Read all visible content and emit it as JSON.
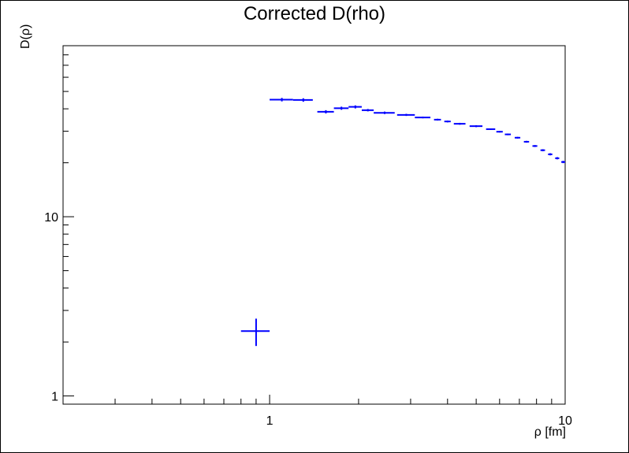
{
  "chart_data": {
    "type": "scatter",
    "title": "Corrected D(rho)",
    "xlabel": "ρ [fm]",
    "ylabel": "D(ρ)",
    "x_scale": "log",
    "y_scale": "log",
    "xlim": [
      0.2,
      10
    ],
    "ylim": [
      0.9,
      90
    ],
    "grid": false,
    "x_tick_labels": [
      "1",
      "10"
    ],
    "y_tick_labels": [
      "1",
      "10"
    ],
    "series_color": "#0000ff",
    "points": [
      {
        "x": 0.9,
        "y": 2.3,
        "xerr": 0.1,
        "yerr": 0.4
      },
      {
        "x": 1.1,
        "y": 45,
        "xerr": 0.1,
        "yerr": 1.0
      },
      {
        "x": 1.3,
        "y": 44.8,
        "xerr": 0.1,
        "yerr": 1.0
      },
      {
        "x": 1.55,
        "y": 38.5,
        "xerr": 0.1,
        "yerr": 0.8
      },
      {
        "x": 1.75,
        "y": 40.3,
        "xerr": 0.1,
        "yerr": 0.8
      },
      {
        "x": 1.95,
        "y": 41.0,
        "xerr": 0.1,
        "yerr": 0.8
      },
      {
        "x": 2.15,
        "y": 39.3,
        "xerr": 0.1,
        "yerr": 0.6
      },
      {
        "x": 2.45,
        "y": 38.0,
        "xerr": 0.2,
        "yerr": 0.6
      },
      {
        "x": 2.9,
        "y": 37.0,
        "xerr": 0.2,
        "yerr": 0.5
      },
      {
        "x": 3.3,
        "y": 35.8,
        "xerr": 0.2,
        "yerr": 0.4
      },
      {
        "x": 3.7,
        "y": 34.8,
        "xerr": 0.1,
        "yerr": 0.4
      },
      {
        "x": 4.0,
        "y": 34.0,
        "xerr": 0.1,
        "yerr": 0.4
      },
      {
        "x": 4.4,
        "y": 33.0,
        "xerr": 0.2,
        "yerr": 0.4
      },
      {
        "x": 5.0,
        "y": 32.0,
        "xerr": 0.25,
        "yerr": 0.4
      },
      {
        "x": 5.6,
        "y": 30.8,
        "xerr": 0.2,
        "yerr": 0.3
      },
      {
        "x": 6.0,
        "y": 29.8,
        "xerr": 0.15,
        "yerr": 0.3
      },
      {
        "x": 6.4,
        "y": 28.8,
        "xerr": 0.15,
        "yerr": 0.3
      },
      {
        "x": 6.9,
        "y": 27.6,
        "xerr": 0.15,
        "yerr": 0.3
      },
      {
        "x": 7.4,
        "y": 26.2,
        "xerr": 0.15,
        "yerr": 0.3
      },
      {
        "x": 7.9,
        "y": 24.8,
        "xerr": 0.15,
        "yerr": 0.3
      },
      {
        "x": 8.4,
        "y": 23.5,
        "xerr": 0.15,
        "yerr": 0.3
      },
      {
        "x": 8.9,
        "y": 22.3,
        "xerr": 0.15,
        "yerr": 0.3
      },
      {
        "x": 9.4,
        "y": 21.2,
        "xerr": 0.15,
        "yerr": 0.3
      },
      {
        "x": 9.85,
        "y": 20.2,
        "xerr": 0.15,
        "yerr": 0.3
      }
    ]
  }
}
